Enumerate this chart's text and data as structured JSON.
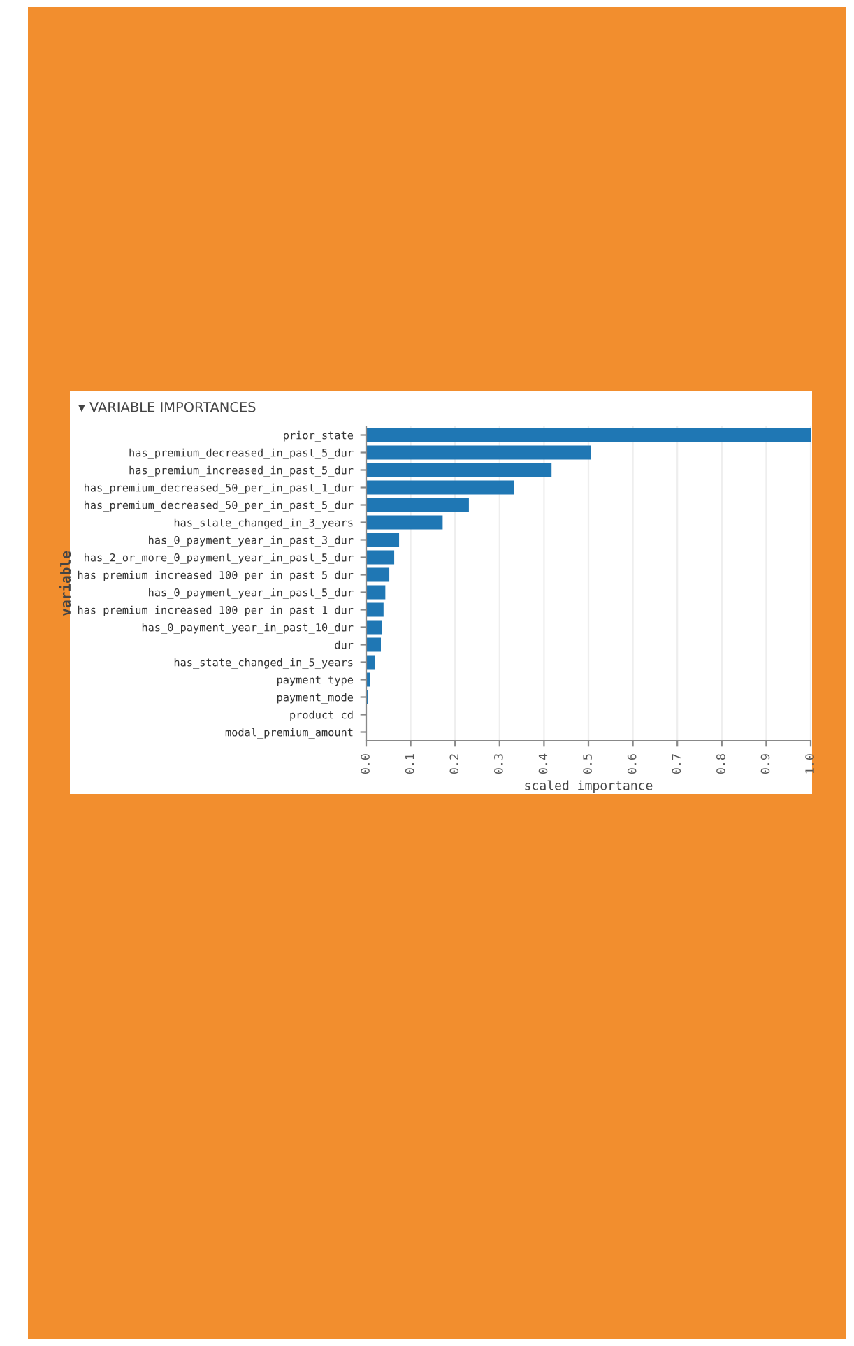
{
  "chart_data": {
    "type": "bar",
    "orientation": "horizontal",
    "title": "▾ VARIABLE IMPORTANCES",
    "xlabel": "scaled importance",
    "ylabel": "variable",
    "categories": [
      "prior_state",
      "has_premium_decreased_in_past_5_dur",
      "has_premium_increased_in_past_5_dur",
      "has_premium_decreased_50_per_in_past_1_dur",
      "has_premium_decreased_50_per_in_past_5_dur",
      "has_state_changed_in_3_years",
      "has_0_payment_year_in_past_3_dur",
      "has_2_or_more_0_payment_year_in_past_5_dur",
      "has_premium_increased_100_per_in_past_5_dur",
      "has_0_payment_year_in_past_5_dur",
      "has_premium_increased_100_per_in_past_1_dur",
      "has_0_payment_year_in_past_10_dur",
      "dur",
      "has_state_changed_in_5_years",
      "payment_type",
      "payment_mode",
      "product_cd",
      "modal_premium_amount"
    ],
    "values": [
      1.0,
      0.505,
      0.417,
      0.333,
      0.231,
      0.172,
      0.074,
      0.063,
      0.052,
      0.043,
      0.039,
      0.036,
      0.033,
      0.02,
      0.009,
      0.004,
      0.0,
      0.0
    ],
    "color": "#1f77b4",
    "xlim": [
      0,
      1.0
    ],
    "xticks": [
      {
        "value": 0,
        "label": "0.0"
      },
      0.1,
      0.2,
      0.3,
      0.4,
      0.5,
      0.6,
      0.7,
      0.8,
      0.9,
      {
        "value": 1.0,
        "label": "1.0"
      }
    ],
    "grid": "x"
  }
}
